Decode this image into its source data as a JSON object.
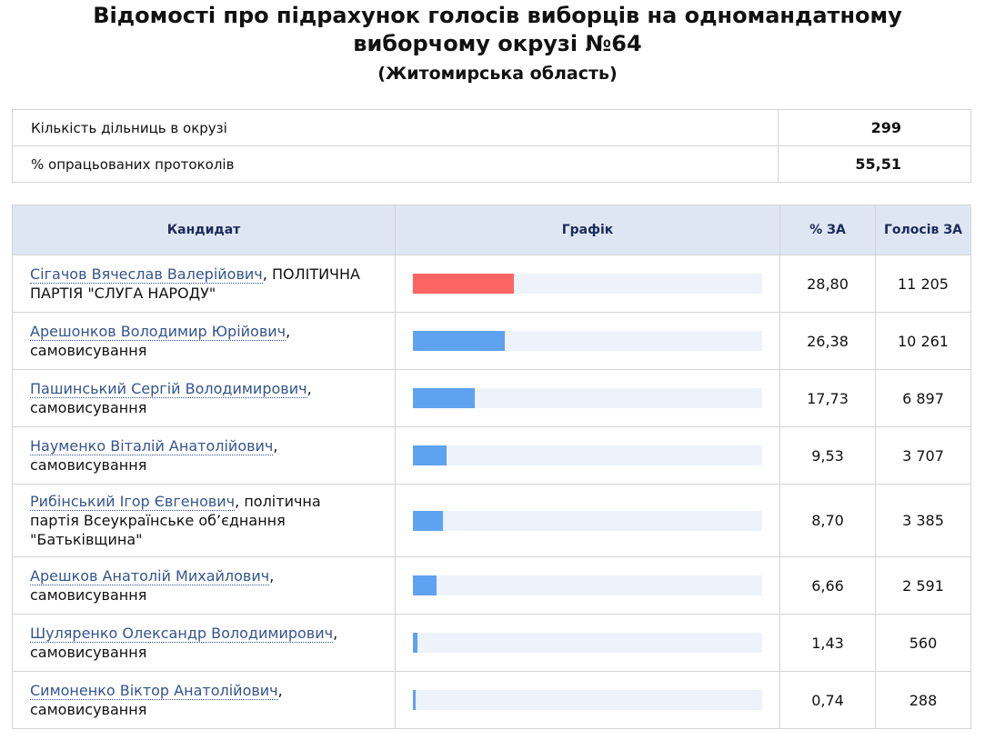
{
  "header": {
    "title": "Відомості про підрахунок голосів виборців на одномандатному виборчому окрузі №64",
    "subtitle": "(Житомирська область)"
  },
  "summary": {
    "rows": [
      [
        "Кількість дільниць в окрузі",
        "299"
      ],
      [
        "% опрацьованих протоколів",
        "55,51"
      ]
    ]
  },
  "table": {
    "columns": [
      "Кандидат",
      "Графік",
      "% ЗА",
      "Голосів ЗА"
    ],
    "name_separator": ",",
    "rows": [
      {
        "name": "Сігачов Вячеслав Валерійович",
        "affiliation": "ПОЛІТИЧНА ПАРТІЯ \"СЛУГА НАРОДУ\"",
        "percent": {
          "value": 28.8,
          "label": "28,80"
        },
        "votes": "11 205",
        "bar_color": "#ff6464"
      },
      {
        "name": "Арешонков Володимир Юрійович",
        "affiliation": "самовисування",
        "percent": {
          "value": 26.38,
          "label": "26,38"
        },
        "votes": "10 261",
        "bar_color": "#5fa2f2"
      },
      {
        "name": "Пашинський Сергій Володимирович",
        "affiliation": "самовисування",
        "percent": {
          "value": 17.73,
          "label": "17,73"
        },
        "votes": "6 897",
        "bar_color": "#5fa2f2"
      },
      {
        "name": "Науменко Віталій Анатолійович",
        "affiliation": "самовисування",
        "percent": {
          "value": 9.53,
          "label": "9,53"
        },
        "votes": "3 707",
        "bar_color": "#5fa2f2"
      },
      {
        "name": "Рибінський Ігор Євгенович",
        "affiliation": "політична партія Всеукраїнське об’єднання \"Батьківщина\"",
        "percent": {
          "value": 8.7,
          "label": "8,70"
        },
        "votes": "3 385",
        "bar_color": "#5fa2f2"
      },
      {
        "name": "Арешков Анатолій Михайлович",
        "affiliation": "самовисування",
        "percent": {
          "value": 6.66,
          "label": "6,66"
        },
        "votes": "2 591",
        "bar_color": "#5fa2f2"
      },
      {
        "name": "Шуляренко Олександр Володимирович",
        "affiliation": "самовисування",
        "percent": {
          "value": 1.43,
          "label": "1,43"
        },
        "votes": "560",
        "bar_color": "#5fa2f2"
      },
      {
        "name": "Симоненко Віктор Анатолійович",
        "affiliation": "самовисування",
        "percent": {
          "value": 0.74,
          "label": "0,74"
        },
        "votes": "288",
        "bar_color": "#5fa2f2"
      }
    ]
  }
}
